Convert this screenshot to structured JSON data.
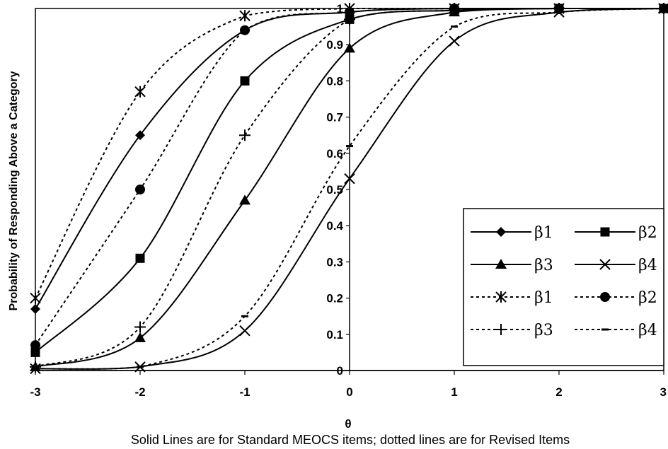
{
  "chart_data": {
    "type": "line",
    "title": "",
    "xlabel": "θ",
    "ylabel": "Probability of Responding Above a Category",
    "caption": "Solid Lines are for Standard MEOCS items; dotted lines are for Revised Items",
    "xlim": [
      -3,
      3
    ],
    "ylim": [
      0,
      1
    ],
    "x_ticks": [
      "-3",
      "-2",
      "-1",
      "0",
      "1",
      "2",
      "3"
    ],
    "y_ticks": [
      "0",
      "0.1",
      "0.2",
      "0.3",
      "0.4",
      "0.5",
      "0.6",
      "0.7",
      "0.8",
      "0.9",
      "1"
    ],
    "grid": false,
    "legend_position": "lower-right",
    "series": [
      {
        "name": "β1",
        "style": "solid",
        "marker": "diamond",
        "x": [
          -3,
          -2,
          -1,
          0,
          1,
          2,
          3
        ],
        "y": [
          0.17,
          0.65,
          0.94,
          0.99,
          1.0,
          1.0,
          1.0
        ]
      },
      {
        "name": "β2",
        "style": "solid",
        "marker": "square",
        "x": [
          -3,
          -2,
          -1,
          0,
          1,
          2,
          3
        ],
        "y": [
          0.05,
          0.31,
          0.8,
          0.97,
          0.995,
          1.0,
          1.0
        ]
      },
      {
        "name": "β3",
        "style": "solid",
        "marker": "triangle",
        "x": [
          -3,
          -2,
          -1,
          0,
          1,
          2,
          3
        ],
        "y": [
          0.01,
          0.09,
          0.47,
          0.89,
          0.99,
          1.0,
          1.0
        ]
      },
      {
        "name": "β4",
        "style": "solid",
        "marker": "x",
        "x": [
          -3,
          -2,
          -1,
          0,
          1,
          2,
          3
        ],
        "y": [
          0.005,
          0.01,
          0.11,
          0.53,
          0.91,
          0.99,
          1.0
        ]
      },
      {
        "name": "β1",
        "style": "dotted",
        "marker": "asterisk",
        "x": [
          -3,
          -2,
          -1,
          0,
          1,
          2,
          3
        ],
        "y": [
          0.2,
          0.77,
          0.98,
          1.0,
          1.0,
          1.0,
          1.0
        ]
      },
      {
        "name": "β2",
        "style": "dotted",
        "marker": "circle",
        "x": [
          -3,
          -2,
          -1,
          0,
          1,
          2,
          3
        ],
        "y": [
          0.07,
          0.5,
          0.94,
          0.99,
          1.0,
          1.0,
          1.0
        ]
      },
      {
        "name": "β3",
        "style": "dotted",
        "marker": "plus",
        "x": [
          -3,
          -2,
          -1,
          0,
          1,
          2,
          3
        ],
        "y": [
          0.01,
          0.12,
          0.65,
          0.97,
          0.995,
          1.0,
          1.0
        ]
      },
      {
        "name": "β4",
        "style": "dotted",
        "marker": "dash",
        "x": [
          -3,
          -2,
          -1,
          0,
          1,
          2,
          3
        ],
        "y": [
          0.005,
          0.01,
          0.15,
          0.62,
          0.95,
          0.99,
          1.0
        ]
      }
    ],
    "colors": {
      "line": "#000000",
      "background": "#ffffff"
    }
  }
}
